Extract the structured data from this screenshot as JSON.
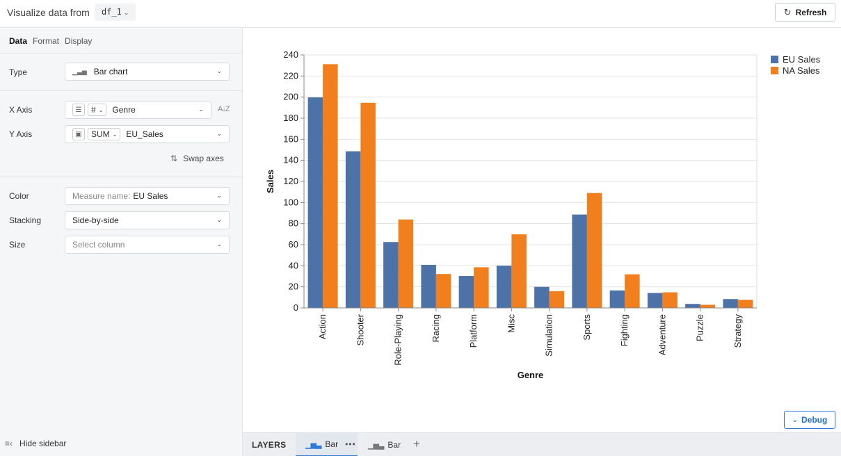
{
  "topbar": {
    "title": "Visualize data from",
    "dataframe": "df_1",
    "refresh_label": "Refresh"
  },
  "sidebar": {
    "tabs": [
      "Data",
      "Format",
      "Display"
    ],
    "type": {
      "label": "Type",
      "value": "Bar chart"
    },
    "x_axis": {
      "label": "X Axis",
      "type_chip": "#",
      "value": "Genre"
    },
    "y_axis": {
      "label": "Y Axis",
      "agg": "SUM",
      "value": "EU_Sales"
    },
    "swap_label": "Swap axes",
    "color": {
      "label": "Color",
      "prefix": "Measure name:",
      "value": "EU Sales"
    },
    "stacking": {
      "label": "Stacking",
      "value": "Side-by-side"
    },
    "size": {
      "label": "Size",
      "placeholder": "Select column"
    },
    "hide_label": "Hide sidebar"
  },
  "debug_label": "Debug",
  "layers": {
    "label": "LAYERS",
    "tabs": [
      {
        "label": "Bar",
        "active": true
      },
      {
        "label": "Bar",
        "active": false
      }
    ]
  },
  "chart_data": {
    "type": "bar",
    "xlabel": "Genre",
    "ylabel": "Sales",
    "ylim": [
      0,
      240
    ],
    "yticks": [
      0,
      20,
      40,
      60,
      80,
      100,
      120,
      140,
      160,
      180,
      200,
      220,
      240
    ],
    "grid": true,
    "legend_position": "top-right",
    "categories": [
      "Action",
      "Shooter",
      "Role-Playing",
      "Racing",
      "Platform",
      "Misc",
      "Simulation",
      "Sports",
      "Fighting",
      "Adventure",
      "Puzzle",
      "Strategy"
    ],
    "series": [
      {
        "name": "EU Sales",
        "color": "#4c72a8",
        "values": [
          199.7,
          148.6,
          62.5,
          40.9,
          30.3,
          40.1,
          20.0,
          88.6,
          16.6,
          14.2,
          3.8,
          8.4
        ]
      },
      {
        "name": "NA Sales",
        "color": "#f27f1e",
        "values": [
          231.2,
          194.6,
          83.9,
          32.2,
          38.6,
          69.8,
          15.9,
          109.0,
          31.9,
          14.8,
          3.0,
          7.7
        ]
      }
    ]
  }
}
